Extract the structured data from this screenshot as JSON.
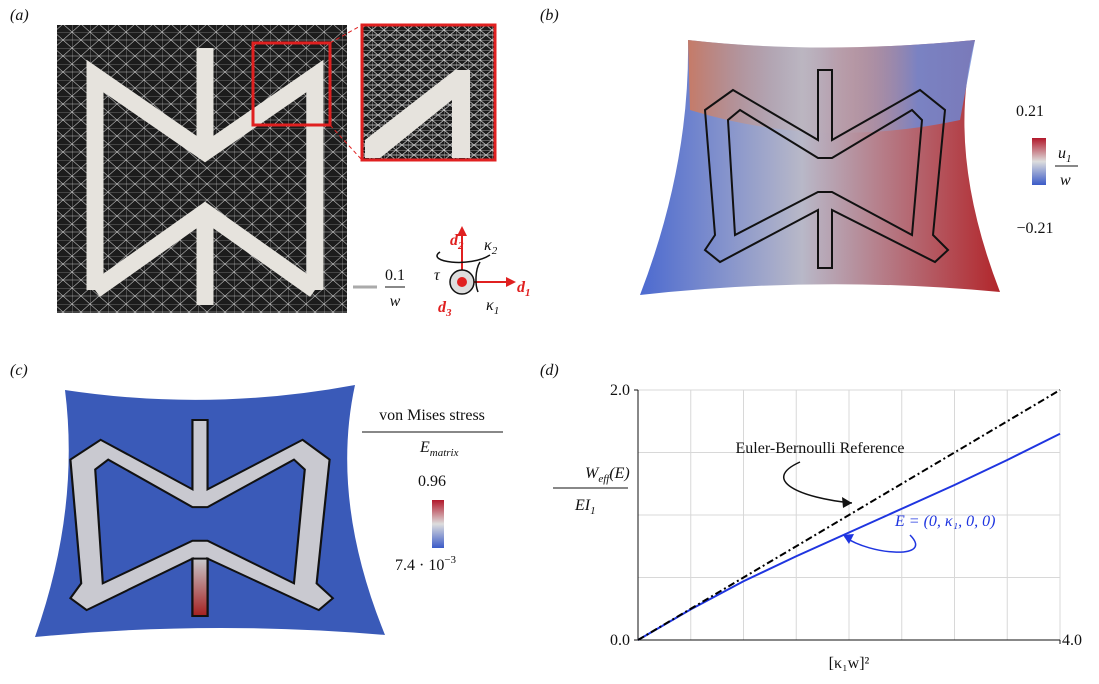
{
  "panels": {
    "a": {
      "label": "(a)",
      "scale_num": "0.1",
      "scale_den": "w",
      "frame": {
        "d": [
          "d",
          "2",
          "d",
          "1",
          "d",
          "3"
        ],
        "kappa2": [
          "κ",
          "2"
        ],
        "kappa1": [
          "κ",
          "1"
        ],
        "tau": "τ"
      }
    },
    "b": {
      "label": "(b)",
      "max": "0.21",
      "min": "−0.21",
      "num": [
        "u",
        "1"
      ],
      "den": "w"
    },
    "c": {
      "label": "(c)",
      "title": "von Mises stress",
      "den": [
        "E",
        "matrix"
      ],
      "max": "0.96",
      "min": [
        "7.4 · 10",
        "−3"
      ]
    }
  },
  "chart_data": {
    "type": "line",
    "panel_label": "(d)",
    "x_label": "[κ₁w]²",
    "y_label_num": [
      "W",
      "eff",
      "(E)"
    ],
    "y_label_den": [
      "EI",
      "1"
    ],
    "x": [
      0,
      0.5,
      1,
      1.5,
      2,
      2.5,
      3,
      3.5,
      4
    ],
    "series": [
      {
        "name": "E = (0, κ₁, 0, 0)",
        "color": "#1f35e0",
        "dashed": false,
        "values": [
          0,
          0.245,
          0.47,
          0.67,
          0.86,
          1.05,
          1.24,
          1.44,
          1.65
        ]
      },
      {
        "name": "Euler-Bernoulli Reference",
        "color": "#000000",
        "dashed": true,
        "values": [
          0,
          0.25,
          0.5,
          0.75,
          1,
          1.25,
          1.5,
          1.75,
          2
        ]
      }
    ],
    "xlim": [
      0,
      4
    ],
    "ylim": [
      0,
      2
    ],
    "xticks": [
      {
        "value": 4,
        "label": "4.0"
      }
    ],
    "yticks": [
      {
        "value": 0,
        "label": "0.0"
      },
      {
        "value": 2,
        "label": "2.0"
      }
    ],
    "xgrid": [
      0.5,
      1,
      1.5,
      2,
      2.5,
      3,
      3.5,
      4
    ],
    "ygrid": [
      0.5,
      1,
      1.5,
      2
    ]
  }
}
